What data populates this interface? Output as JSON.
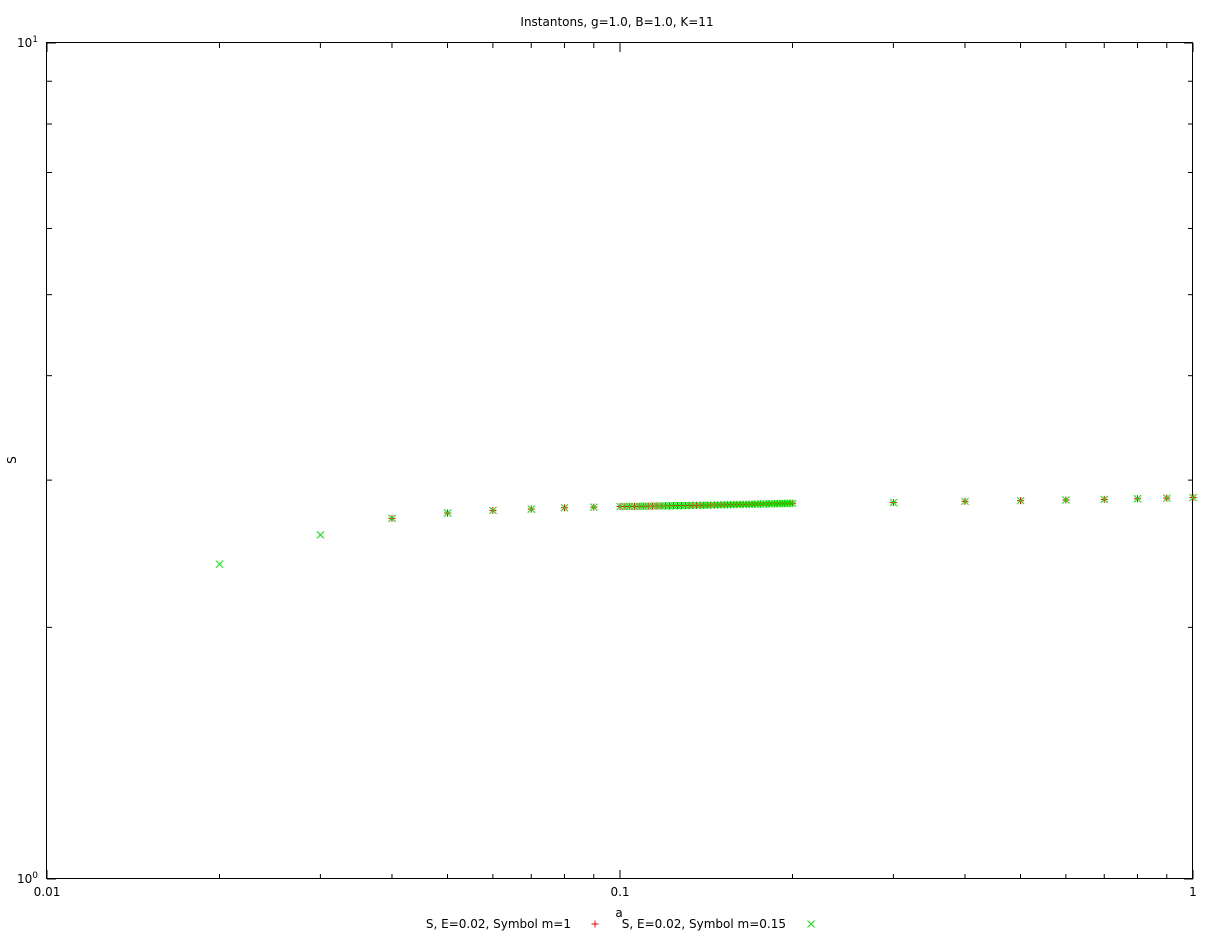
{
  "chart_data": {
    "type": "scatter",
    "title": "Instantons, g=1.0, B=1.0, K=11",
    "xlabel": "a",
    "ylabel": "S",
    "xscale": "log",
    "yscale": "log",
    "xlim": [
      0.01,
      1
    ],
    "ylim": [
      1,
      10
    ],
    "x_tick_labels": [
      "0.01",
      "0.1",
      "1"
    ],
    "y_tick_labels": [
      {
        "base": "10",
        "exp": "0"
      },
      {
        "base": "10",
        "exp": "1"
      }
    ],
    "legend_position": "bottom-center",
    "grid": false,
    "series": [
      {
        "name": "S, E=0.02, Symbol m=1",
        "marker": "plus",
        "color": "#ff0000",
        "x": [
          0.04,
          0.05,
          0.06,
          0.07,
          0.08,
          0.09,
          0.1,
          0.102,
          0.104,
          0.106,
          0.108,
          0.11,
          0.112,
          0.114,
          0.116,
          0.118,
          0.12,
          0.122,
          0.124,
          0.126,
          0.128,
          0.13,
          0.132,
          0.134,
          0.136,
          0.138,
          0.14,
          0.142,
          0.144,
          0.146,
          0.148,
          0.15,
          0.152,
          0.154,
          0.156,
          0.158,
          0.16,
          0.162,
          0.164,
          0.166,
          0.168,
          0.17,
          0.172,
          0.174,
          0.176,
          0.178,
          0.18,
          0.182,
          0.184,
          0.186,
          0.188,
          0.19,
          0.192,
          0.194,
          0.196,
          0.198,
          0.2,
          0.3,
          0.4,
          0.5,
          0.6,
          0.7,
          0.8,
          0.9,
          1.0
        ],
        "y": [
          2.7,
          2.74,
          2.76,
          2.77,
          2.78,
          2.785,
          2.79,
          2.79,
          2.791,
          2.791,
          2.792,
          2.792,
          2.793,
          2.793,
          2.794,
          2.794,
          2.795,
          2.795,
          2.796,
          2.796,
          2.797,
          2.797,
          2.798,
          2.798,
          2.799,
          2.799,
          2.8,
          2.8,
          2.801,
          2.801,
          2.802,
          2.802,
          2.803,
          2.803,
          2.804,
          2.804,
          2.805,
          2.805,
          2.806,
          2.806,
          2.807,
          2.807,
          2.808,
          2.808,
          2.809,
          2.809,
          2.81,
          2.81,
          2.811,
          2.811,
          2.812,
          2.812,
          2.813,
          2.813,
          2.814,
          2.814,
          2.815,
          2.82,
          2.83,
          2.835,
          2.84,
          2.845,
          2.85,
          2.855,
          2.86
        ]
      },
      {
        "name": "S, E=0.02, Symbol m=0.15",
        "marker": "cross",
        "color": "#00ee00",
        "x": [
          0.02,
          0.03,
          0.04,
          0.05,
          0.06,
          0.07,
          0.08,
          0.09,
          0.1,
          0.102,
          0.104,
          0.106,
          0.108,
          0.11,
          0.112,
          0.114,
          0.116,
          0.118,
          0.12,
          0.122,
          0.124,
          0.126,
          0.128,
          0.13,
          0.132,
          0.134,
          0.136,
          0.138,
          0.14,
          0.142,
          0.144,
          0.146,
          0.148,
          0.15,
          0.152,
          0.154,
          0.156,
          0.158,
          0.16,
          0.162,
          0.164,
          0.166,
          0.168,
          0.17,
          0.172,
          0.174,
          0.176,
          0.178,
          0.18,
          0.182,
          0.184,
          0.186,
          0.188,
          0.19,
          0.192,
          0.194,
          0.196,
          0.198,
          0.2,
          0.3,
          0.4,
          0.5,
          0.6,
          0.7,
          0.8,
          0.9,
          1.0
        ],
        "y": [
          2.38,
          2.58,
          2.7,
          2.74,
          2.76,
          2.77,
          2.78,
          2.785,
          2.79,
          2.79,
          2.791,
          2.791,
          2.792,
          2.792,
          2.793,
          2.793,
          2.794,
          2.794,
          2.795,
          2.795,
          2.796,
          2.796,
          2.797,
          2.797,
          2.798,
          2.798,
          2.799,
          2.799,
          2.8,
          2.8,
          2.801,
          2.801,
          2.802,
          2.802,
          2.803,
          2.803,
          2.804,
          2.804,
          2.805,
          2.805,
          2.806,
          2.806,
          2.807,
          2.807,
          2.808,
          2.808,
          2.809,
          2.809,
          2.81,
          2.81,
          2.811,
          2.811,
          2.812,
          2.812,
          2.813,
          2.813,
          2.814,
          2.814,
          2.815,
          2.82,
          2.83,
          2.835,
          2.84,
          2.845,
          2.85,
          2.855,
          2.86
        ]
      }
    ]
  }
}
